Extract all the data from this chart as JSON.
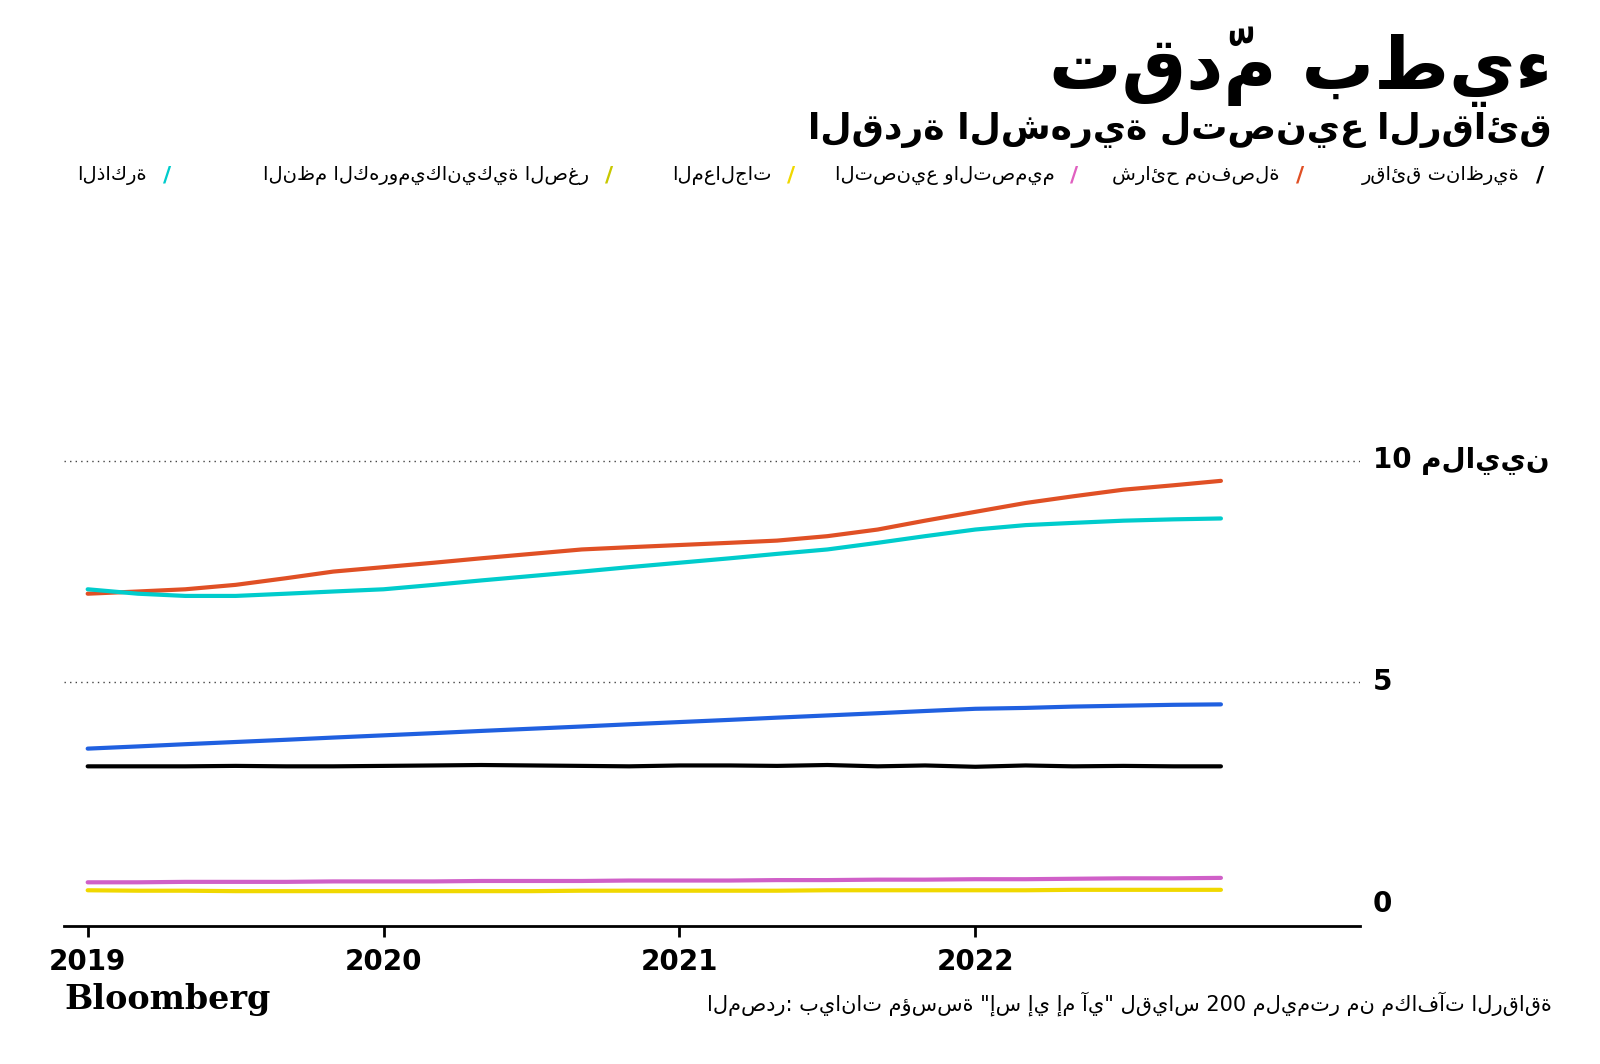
{
  "title": "تقدّم بطيء",
  "subtitle": "القدرة الشهرية لتصنيع الرقائق",
  "source_text": "المصدر: بيانات مؤسسة \"إس إي إم آي\" لقياس 200 مليمتر من مكافآت الرقاقة",
  "bloomberg_text": "Bloomberg",
  "legend_labels": [
    "رقائق تناظرية",
    "شرائح منفصلة",
    "التصنيع والتصميم",
    "المعالجات",
    "النظم الكهروميكانيكية الصغر",
    "الذاكرة"
  ],
  "legend_colors": [
    "#000000",
    "#e05025",
    "#e060c0",
    "#f0d800",
    "#c8c800",
    "#00cccc"
  ],
  "series": {
    "sharaih": {
      "color": "#e05025",
      "x": [
        2019.0,
        2019.17,
        2019.33,
        2019.5,
        2019.67,
        2019.83,
        2020.0,
        2020.17,
        2020.33,
        2020.5,
        2020.67,
        2020.83,
        2021.0,
        2021.17,
        2021.33,
        2021.5,
        2021.67,
        2021.83,
        2022.0,
        2022.17,
        2022.33,
        2022.5,
        2022.67,
        2022.83
      ],
      "y": [
        7.0,
        7.05,
        7.1,
        7.2,
        7.35,
        7.5,
        7.6,
        7.7,
        7.8,
        7.9,
        8.0,
        8.05,
        8.1,
        8.15,
        8.2,
        8.3,
        8.45,
        8.65,
        8.85,
        9.05,
        9.2,
        9.35,
        9.45,
        9.55
      ]
    },
    "zaakira": {
      "color": "#00cccc",
      "x": [
        2019.0,
        2019.17,
        2019.33,
        2019.5,
        2019.67,
        2019.83,
        2020.0,
        2020.17,
        2020.33,
        2020.5,
        2020.67,
        2020.83,
        2021.0,
        2021.17,
        2021.33,
        2021.5,
        2021.67,
        2021.83,
        2022.0,
        2022.17,
        2022.33,
        2022.5,
        2022.67,
        2022.83
      ],
      "y": [
        7.1,
        7.0,
        6.95,
        6.95,
        7.0,
        7.05,
        7.1,
        7.2,
        7.3,
        7.4,
        7.5,
        7.6,
        7.7,
        7.8,
        7.9,
        8.0,
        8.15,
        8.3,
        8.45,
        8.55,
        8.6,
        8.65,
        8.68,
        8.7
      ]
    },
    "blue_line": {
      "color": "#2060e0",
      "x": [
        2019.0,
        2019.17,
        2019.33,
        2019.5,
        2019.67,
        2019.83,
        2020.0,
        2020.17,
        2020.33,
        2020.5,
        2020.67,
        2020.83,
        2021.0,
        2021.17,
        2021.33,
        2021.5,
        2021.67,
        2021.83,
        2022.0,
        2022.17,
        2022.33,
        2022.5,
        2022.67,
        2022.83
      ],
      "y": [
        3.5,
        3.55,
        3.6,
        3.65,
        3.7,
        3.75,
        3.8,
        3.85,
        3.9,
        3.95,
        4.0,
        4.05,
        4.1,
        4.15,
        4.2,
        4.25,
        4.3,
        4.35,
        4.4,
        4.42,
        4.45,
        4.47,
        4.49,
        4.5
      ]
    },
    "black_line": {
      "color": "#000000",
      "x": [
        2019.0,
        2019.17,
        2019.33,
        2019.5,
        2019.67,
        2019.83,
        2020.0,
        2020.17,
        2020.33,
        2020.5,
        2020.67,
        2020.83,
        2021.0,
        2021.17,
        2021.33,
        2021.5,
        2021.67,
        2021.83,
        2022.0,
        2022.17,
        2022.33,
        2022.5,
        2022.67,
        2022.83
      ],
      "y": [
        3.1,
        3.1,
        3.1,
        3.11,
        3.1,
        3.1,
        3.11,
        3.12,
        3.13,
        3.12,
        3.11,
        3.1,
        3.12,
        3.12,
        3.11,
        3.13,
        3.1,
        3.12,
        3.09,
        3.12,
        3.1,
        3.11,
        3.1,
        3.1
      ]
    },
    "pink_line": {
      "color": "#d060c8",
      "x": [
        2019.0,
        2019.17,
        2019.33,
        2019.5,
        2019.67,
        2019.83,
        2020.0,
        2020.17,
        2020.33,
        2020.5,
        2020.67,
        2020.83,
        2021.0,
        2021.17,
        2021.33,
        2021.5,
        2021.67,
        2021.83,
        2022.0,
        2022.17,
        2022.33,
        2022.5,
        2022.67,
        2022.83
      ],
      "y": [
        0.48,
        0.48,
        0.49,
        0.49,
        0.49,
        0.5,
        0.5,
        0.5,
        0.51,
        0.51,
        0.51,
        0.52,
        0.52,
        0.52,
        0.53,
        0.53,
        0.54,
        0.54,
        0.55,
        0.55,
        0.56,
        0.57,
        0.57,
        0.58
      ]
    },
    "yellow_line": {
      "color": "#f0d800",
      "x": [
        2019.0,
        2019.17,
        2019.33,
        2019.5,
        2019.67,
        2019.83,
        2020.0,
        2020.17,
        2020.33,
        2020.5,
        2020.67,
        2020.83,
        2021.0,
        2021.17,
        2021.33,
        2021.5,
        2021.67,
        2021.83,
        2022.0,
        2022.17,
        2022.33,
        2022.5,
        2022.67,
        2022.83
      ],
      "y": [
        0.3,
        0.29,
        0.29,
        0.28,
        0.28,
        0.28,
        0.28,
        0.28,
        0.28,
        0.28,
        0.29,
        0.29,
        0.29,
        0.29,
        0.29,
        0.3,
        0.3,
        0.3,
        0.3,
        0.3,
        0.31,
        0.31,
        0.31,
        0.31
      ]
    }
  },
  "xlim": [
    2018.92,
    2023.3
  ],
  "ylim": [
    -0.5,
    12.0
  ],
  "xticks": [
    2019,
    2020,
    2021,
    2022
  ],
  "y0_label": "0",
  "y5_label": "5",
  "y10_label": "10 ملايين",
  "bg_color": "#ffffff",
  "line_width": 3.0
}
